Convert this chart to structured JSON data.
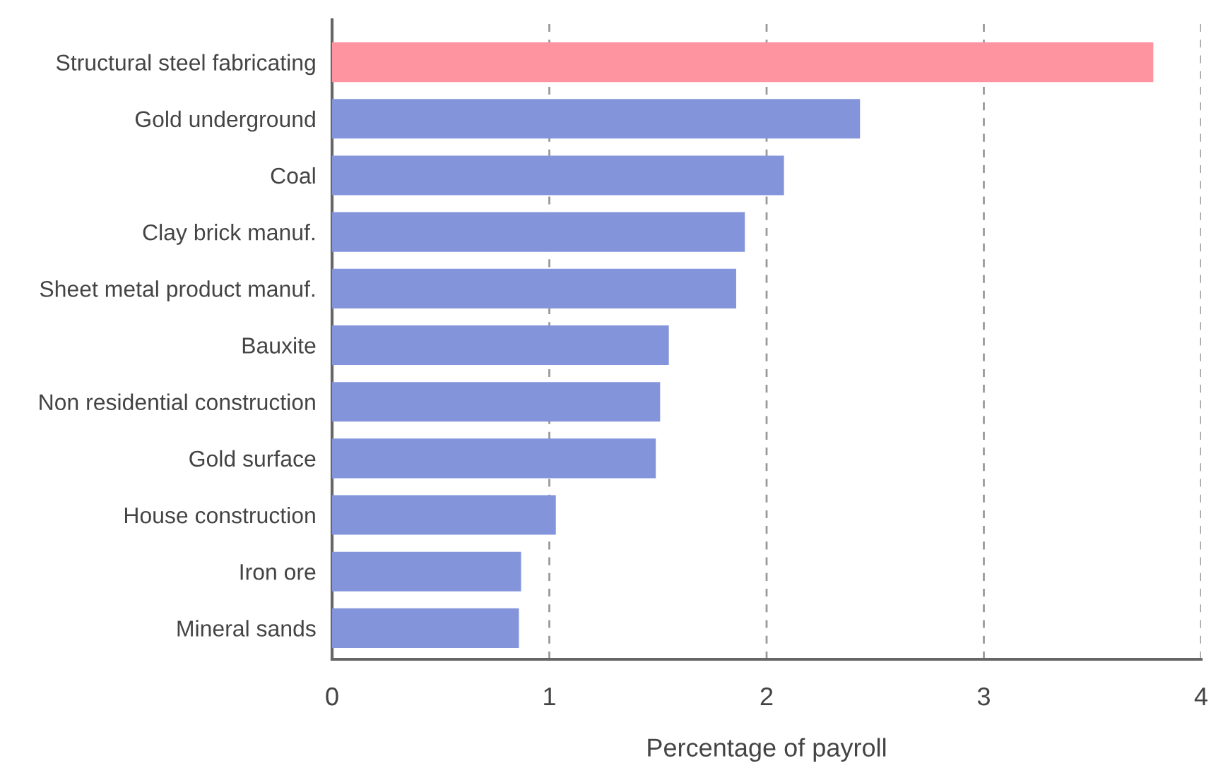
{
  "chart_data": {
    "type": "bar",
    "orientation": "horizontal",
    "xlabel": "Percentage of payroll",
    "categories": [
      "Structural steel fabricating",
      "Gold underground",
      "Coal",
      "Clay brick manuf.",
      "Sheet metal product manuf.",
      "Bauxite",
      "Non residential construction",
      "Gold surface",
      "House construction",
      "Iron ore",
      "Mineral sands"
    ],
    "values": [
      3.78,
      2.43,
      2.08,
      1.9,
      1.86,
      1.55,
      1.51,
      1.49,
      1.03,
      0.87,
      0.86
    ],
    "colors": [
      "#ff94a1",
      "#8494db",
      "#8494db",
      "#8494db",
      "#8494db",
      "#8494db",
      "#8494db",
      "#8494db",
      "#8494db",
      "#8494db",
      "#8494db"
    ],
    "xlim": [
      0,
      4
    ],
    "xticks": [
      0,
      1,
      2,
      3,
      4
    ],
    "grid": "x"
  }
}
